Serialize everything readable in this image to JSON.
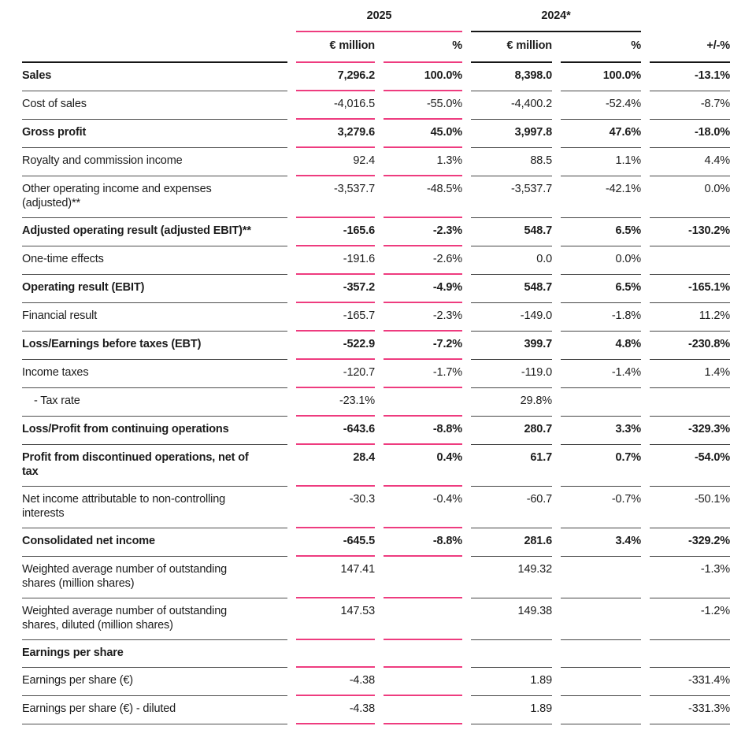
{
  "table": {
    "title": "income-statement",
    "col_groups": [
      {
        "label": "2025",
        "accent": "pink"
      },
      {
        "label": "2024*",
        "accent": "dark"
      }
    ],
    "columns": [
      "€ million",
      "%",
      "€ million",
      "%",
      "+/-%"
    ],
    "colors": {
      "accent_pink": "#ee3c7f",
      "line_gray": "#4d4d4d",
      "line_black": "#161616",
      "text": "#1c1c1c"
    },
    "rows": [
      {
        "label": "Sales",
        "bold": true,
        "values": [
          "7,296.2",
          "100.0%",
          "8,398.0",
          "100.0%",
          "-13.1%"
        ]
      },
      {
        "label": "Cost of sales",
        "bold": false,
        "values": [
          "-4,016.5",
          "-55.0%",
          "-4,400.2",
          "-52.4%",
          "-8.7%"
        ]
      },
      {
        "label": "Gross profit",
        "bold": true,
        "values": [
          "3,279.6",
          "45.0%",
          "3,997.8",
          "47.6%",
          "-18.0%"
        ]
      },
      {
        "label": "Royalty and commission income",
        "bold": false,
        "values": [
          "92.4",
          "1.3%",
          "88.5",
          "1.1%",
          "4.4%"
        ]
      },
      {
        "label": "Other operating income and expenses\n(adjusted)**",
        "bold": false,
        "values": [
          "-3,537.7",
          "-48.5%",
          "-3,537.7",
          "-42.1%",
          "0.0%"
        ]
      },
      {
        "label": "Adjusted operating result (adjusted EBIT)**",
        "bold": true,
        "values": [
          "-165.6",
          "-2.3%",
          "548.7",
          "6.5%",
          "-130.2%"
        ]
      },
      {
        "label": "One-time effects",
        "bold": false,
        "values": [
          "-191.6",
          "-2.6%",
          "0.0",
          "0.0%",
          ""
        ]
      },
      {
        "label": "Operating result (EBIT)",
        "bold": true,
        "values": [
          "-357.2",
          "-4.9%",
          "548.7",
          "6.5%",
          "-165.1%"
        ]
      },
      {
        "label": "Financial result",
        "bold": false,
        "values": [
          "-165.7",
          "-2.3%",
          "-149.0",
          "-1.8%",
          "11.2%"
        ]
      },
      {
        "label": "Loss/Earnings before taxes (EBT)",
        "bold": true,
        "values": [
          "-522.9",
          "-7.2%",
          "399.7",
          "4.8%",
          "-230.8%"
        ]
      },
      {
        "label": "Income taxes",
        "bold": false,
        "values": [
          "-120.7",
          "-1.7%",
          "-119.0",
          "-1.4%",
          "1.4%"
        ]
      },
      {
        "label": "- Tax rate",
        "bold": false,
        "indent": true,
        "values": [
          "-23.1%",
          "",
          "29.8%",
          "",
          ""
        ]
      },
      {
        "label": "Loss/Profit from continuing operations",
        "bold": true,
        "values": [
          "-643.6",
          "-8.8%",
          "280.7",
          "3.3%",
          "-329.3%"
        ]
      },
      {
        "label": "Profit from discontinued operations, net of\ntax",
        "bold": true,
        "values": [
          "28.4",
          "0.4%",
          "61.7",
          "0.7%",
          "-54.0%"
        ]
      },
      {
        "label": "Net income attributable to non-controlling\ninterests",
        "bold": false,
        "values": [
          "-30.3",
          "-0.4%",
          "-60.7",
          "-0.7%",
          "-50.1%"
        ]
      },
      {
        "label": "Consolidated net income",
        "bold": true,
        "values": [
          "-645.5",
          "-8.8%",
          "281.6",
          "3.4%",
          "-329.2%"
        ]
      },
      {
        "label": "Weighted average number of outstanding\nshares (million shares)",
        "bold": false,
        "values": [
          "147.41",
          "",
          "149.32",
          "",
          "-1.3%"
        ]
      },
      {
        "label": "Weighted average number of outstanding\nshares, diluted (million shares)",
        "bold": false,
        "values": [
          "147.53",
          "",
          "149.38",
          "",
          "-1.2%"
        ]
      },
      {
        "label": "Earnings per share",
        "bold": true,
        "section": true,
        "values": [
          "",
          "",
          "",
          "",
          ""
        ]
      },
      {
        "label": "Earnings per share (€)",
        "bold": false,
        "values": [
          "-4.38",
          "",
          "1.89",
          "",
          "-331.4%"
        ]
      },
      {
        "label": "Earnings per share (€) - diluted",
        "bold": false,
        "values": [
          "-4.38",
          "",
          "1.89",
          "",
          "-331.3%"
        ]
      }
    ]
  }
}
